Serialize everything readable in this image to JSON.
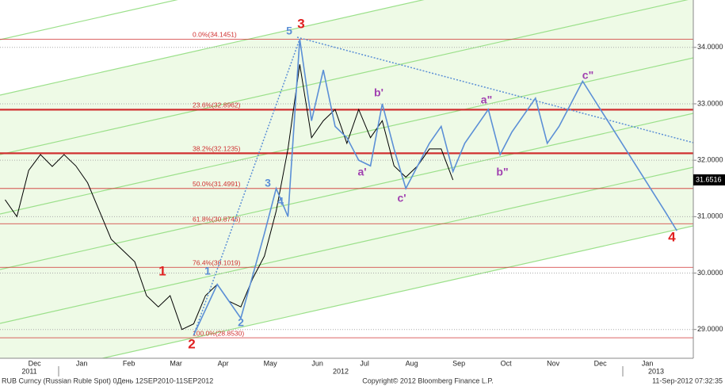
{
  "chart_data": {
    "type": "line",
    "categories": [
      null,
      null,
      null,
      "Dec",
      null,
      null,
      null,
      "Jan",
      null,
      null,
      null,
      "Feb",
      null,
      null,
      null,
      "Mar",
      null,
      null,
      null,
      "Apr",
      null,
      null,
      null,
      "May",
      null,
      null,
      null,
      "Jun",
      null,
      null,
      null,
      "Jul",
      null,
      null,
      null,
      "Aug",
      null,
      null,
      null,
      "Sep",
      null,
      null,
      null,
      "Oct",
      null,
      null,
      null,
      "Nov",
      null,
      null,
      null,
      "Dec",
      null,
      null,
      null,
      "Jan",
      null,
      null,
      null
    ],
    "x_years": [
      "2011",
      "2012",
      "2013"
    ],
    "series": [
      {
        "color": "#000000",
        "values": [
          31.3,
          31.0,
          31.82,
          32.1,
          31.89,
          32.1,
          31.9,
          31.6,
          31.1,
          30.6,
          30.4,
          30.2,
          29.6,
          29.4,
          29.6,
          29.0,
          29.1,
          29.6,
          29.8,
          29.5,
          29.4,
          29.9,
          30.3,
          31.1,
          32.2,
          33.7,
          32.4,
          32.7,
          32.9,
          32.3,
          32.9,
          32.4,
          32.7,
          31.9,
          31.7,
          31.9,
          32.2,
          32.2,
          31.65,
          null,
          null,
          null,
          null,
          null,
          null,
          null,
          null,
          null,
          null,
          null,
          null,
          null,
          null,
          null,
          null,
          null,
          null,
          null,
          null
        ]
      },
      {
        "color": "#5b8fd6",
        "values": [
          null,
          null,
          null,
          null,
          null,
          null,
          null,
          null,
          null,
          null,
          null,
          null,
          null,
          null,
          null,
          null,
          28.9,
          29.35,
          29.8,
          29.5,
          29.2,
          29.95,
          30.7,
          31.5,
          31.0,
          34.15,
          32.7,
          33.6,
          32.6,
          32.4,
          32.0,
          31.9,
          33.0,
          32.2,
          31.5,
          31.9,
          32.3,
          32.6,
          31.8,
          32.3,
          32.6,
          32.9,
          32.1,
          32.5,
          32.8,
          33.1,
          32.3,
          32.6,
          33.0,
          33.4,
          33.07,
          32.74,
          32.41,
          32.08,
          31.75,
          31.42,
          31.09,
          30.75,
          null
        ]
      }
    ],
    "ylim": [
      28.49,
      34.84
    ],
    "yticks": [
      {
        "value": 29,
        "label": "29.0000"
      },
      {
        "value": 30,
        "label": "30.0000"
      },
      {
        "value": 31,
        "label": "31.0000"
      },
      {
        "value": 32,
        "label": "32.0000"
      },
      {
        "value": 33,
        "label": "33.0000"
      },
      {
        "value": 34,
        "label": "34.0000"
      }
    ],
    "grid": true,
    "last_price": 31.6516,
    "fib_color": "#d03030",
    "fib_levels": [
      {
        "label": "0.0%(34.1451)",
        "value": 34.1451,
        "thick": false
      },
      {
        "label": "23.6%(32.8962)",
        "value": 32.8962,
        "thick": true
      },
      {
        "label": "38.2%(32.1235)",
        "value": 32.1235,
        "thick": true
      },
      {
        "label": "50.0%(31.4991)",
        "value": 31.4991,
        "thick": false
      },
      {
        "label": "61.8%(30.8746)",
        "value": 30.8746,
        "thick": false
      },
      {
        "label": "76.4%(30.1019)",
        "value": 30.1019,
        "thick": false
      },
      {
        "label": "100.0%(28.8530)",
        "value": 28.853,
        "thick": false
      }
    ],
    "annotations": [
      {
        "text": "1",
        "color": "#e02020"
      },
      {
        "text": "2",
        "color": "#e02020"
      },
      {
        "text": "3",
        "color": "#e02020"
      },
      {
        "text": "4",
        "color": "#e02020"
      },
      {
        "text": "1",
        "color": "#5b8fd6"
      },
      {
        "text": "2",
        "color": "#5b8fd6"
      },
      {
        "text": "3",
        "color": "#5b8fd6"
      },
      {
        "text": "4",
        "color": "#5b8fd6"
      },
      {
        "text": "5",
        "color": "#5b8fd6"
      },
      {
        "text": "a'",
        "color": "#a040b0"
      },
      {
        "text": "b'",
        "color": "#a040b0"
      },
      {
        "text": "c'",
        "color": "#a040b0"
      },
      {
        "text": "a\"",
        "color": "#a040b0"
      },
      {
        "text": "b\"",
        "color": "#a040b0"
      },
      {
        "text": "c\"",
        "color": "#a040b0"
      }
    ]
  },
  "footer": {
    "left": "RUB Curncy (Russian Ruble Spot) 0День 12SEP2010-11SEP2012",
    "center": "Copyright© 2012 Bloomberg Finance L.P.",
    "right": "11-Sep-2012 07:32:35"
  }
}
